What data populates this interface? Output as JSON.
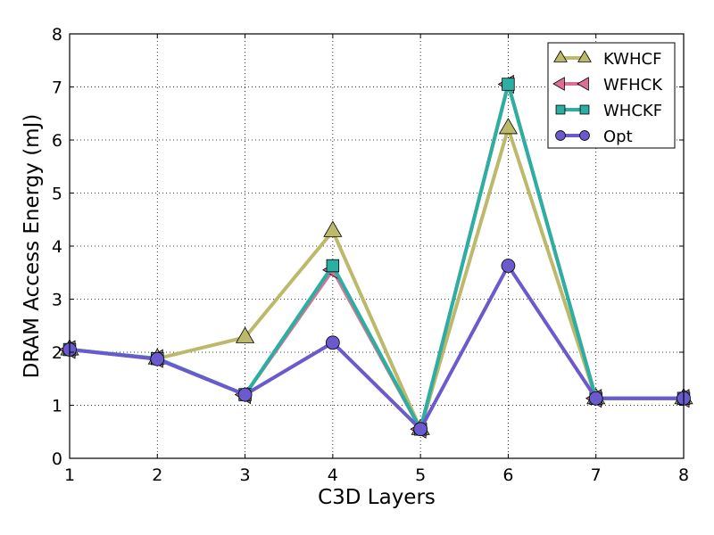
{
  "chart_data": {
    "type": "line",
    "title": "",
    "xlabel": "C3D Layers",
    "ylabel": "DRAM Access Energy (mJ)",
    "xlim": [
      1,
      8
    ],
    "ylim": [
      0,
      8
    ],
    "xticks": [
      "1",
      "2",
      "3",
      "4",
      "5",
      "6",
      "7",
      "8"
    ],
    "yticks": [
      "0",
      "1",
      "2",
      "3",
      "4",
      "5",
      "6",
      "7",
      "8"
    ],
    "grid": true,
    "legend_position": "top-right",
    "x": [
      1,
      2,
      3,
      4,
      5,
      6,
      7,
      8
    ],
    "series": [
      {
        "name": "KWHCF",
        "color": "#bcb96a",
        "marker": "triangle-up",
        "values": [
          2.05,
          1.88,
          2.28,
          4.28,
          0.55,
          6.22,
          1.13,
          1.13
        ]
      },
      {
        "name": "WFHCK",
        "color": "#dd6f92",
        "marker": "triangle-left",
        "values": [
          2.05,
          1.88,
          1.2,
          3.55,
          0.55,
          7.05,
          1.13,
          1.13
        ]
      },
      {
        "name": "WHCKF",
        "color": "#2aafa2",
        "marker": "square",
        "values": [
          2.05,
          1.88,
          1.2,
          3.63,
          0.55,
          7.05,
          1.13,
          1.13
        ]
      },
      {
        "name": "Opt",
        "color": "#6a5acd",
        "marker": "circle",
        "values": [
          2.05,
          1.87,
          1.2,
          2.18,
          0.55,
          3.63,
          1.13,
          1.13
        ]
      }
    ]
  }
}
